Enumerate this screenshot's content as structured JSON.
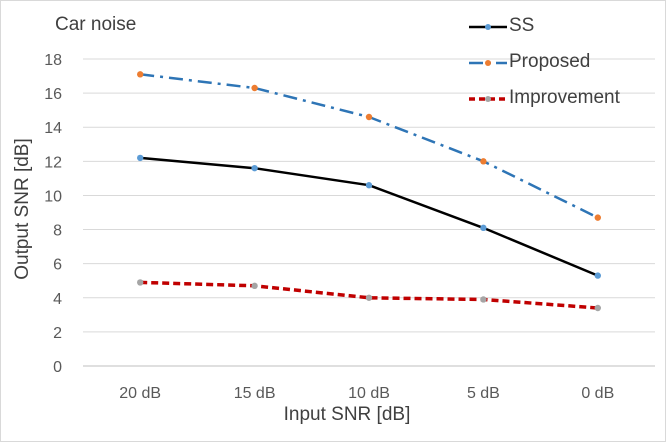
{
  "chart_data": {
    "type": "line",
    "title": "Car noise",
    "xlabel": "Input SNR [dB]",
    "ylabel": "Output SNR [dB]",
    "categories": [
      "20 dB",
      "15 dB",
      "10 dB",
      "5 dB",
      "0 dB"
    ],
    "ylim": [
      0,
      18
    ],
    "yticks": [
      0,
      2,
      4,
      6,
      8,
      10,
      12,
      14,
      16,
      18
    ],
    "grid": true,
    "legend_position": "top-right",
    "series": [
      {
        "name": "SS",
        "values": [
          12.2,
          11.6,
          10.6,
          8.1,
          5.3
        ],
        "line_color": "#000000",
        "marker_color": "#5b9bd5",
        "line_style": "solid"
      },
      {
        "name": "Proposed",
        "values": [
          17.1,
          16.3,
          14.6,
          12.0,
          8.7
        ],
        "line_color": "#2e75b6",
        "marker_color": "#ed7d31",
        "line_style": "dash-dot"
      },
      {
        "name": "Improvement",
        "values": [
          4.9,
          4.7,
          4.0,
          3.9,
          3.4
        ],
        "line_color": "#c00000",
        "marker_color": "#a5a5a5",
        "line_style": "dashed"
      }
    ]
  }
}
